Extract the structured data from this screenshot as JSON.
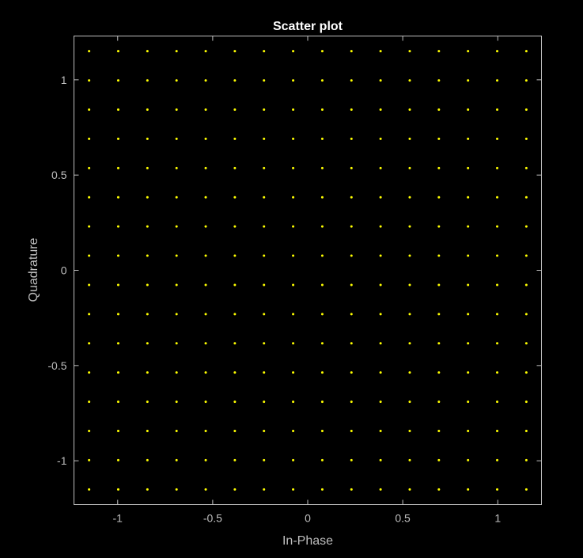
{
  "chart_data": {
    "type": "scatter",
    "title": "Scatter plot",
    "xlabel": "In-Phase",
    "ylabel": "Quadrature",
    "xlim": [
      -1.23,
      1.23
    ],
    "ylim": [
      -1.23,
      1.23
    ],
    "xticks": [
      -1,
      -0.5,
      0,
      0.5,
      1
    ],
    "yticks": [
      -1,
      -0.5,
      0,
      0.5,
      1
    ],
    "xtick_labels": [
      "-1",
      "-0.5",
      "0",
      "0.5",
      "1"
    ],
    "ytick_labels": [
      "-1",
      "-0.5",
      "0",
      "0.5",
      "1"
    ],
    "grid": false,
    "legend": "none",
    "colors": {
      "background": "#000000",
      "axes_box": "#bfbfbf",
      "tick_text": "#bfbfbf",
      "label_text": "#bfbfbf",
      "title_text": "#ffffff",
      "points": "#ffff00"
    },
    "series": [
      {
        "x": [
          -1.1504,
          -0.997,
          -0.8436,
          -0.6902,
          -0.5368,
          -0.3834,
          -0.2301,
          -0.0767,
          0.0767,
          0.2301,
          0.3834,
          0.5368,
          0.6902,
          0.8436,
          0.997,
          1.1504
        ],
        "y": [
          -1.1504,
          -0.997,
          -0.8436,
          -0.6902,
          -0.5368,
          -0.3834,
          -0.2301,
          -0.0767,
          0.0767,
          0.2301,
          0.3834,
          0.5368,
          0.6902,
          0.8436,
          0.997,
          1.1504
        ],
        "layout": "grid"
      }
    ]
  }
}
